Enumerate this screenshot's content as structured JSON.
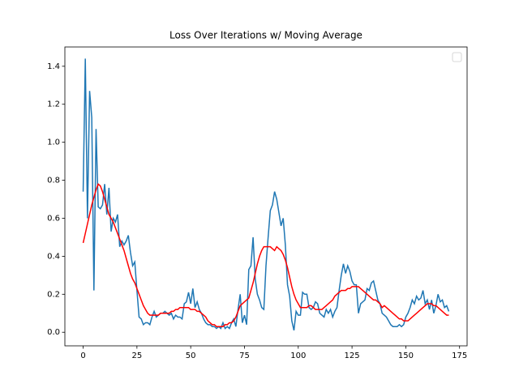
{
  "chart_data": {
    "type": "line",
    "title": "Loss Over Iterations w/ Moving Average",
    "series": [
      {
        "color": "#1f77b4",
        "values": [
          0.74,
          1.44,
          0.6,
          1.27,
          1.13,
          0.22,
          1.07,
          0.66,
          0.65,
          0.67,
          0.78,
          0.62,
          0.76,
          0.53,
          0.6,
          0.58,
          0.62,
          0.45,
          0.48,
          0.46,
          0.48,
          0.51,
          0.42,
          0.35,
          0.37,
          0.22,
          0.08,
          0.07,
          0.04,
          0.05,
          0.05,
          0.04,
          0.08,
          0.11,
          0.08,
          0.09,
          0.1,
          0.1,
          0.11,
          0.1,
          0.09,
          0.1,
          0.07,
          0.09,
          0.08,
          0.08,
          0.07,
          0.15,
          0.16,
          0.21,
          0.15,
          0.23,
          0.13,
          0.16,
          0.12,
          0.1,
          0.07,
          0.05,
          0.04,
          0.04,
          0.03,
          0.03,
          0.02,
          0.03,
          0.02,
          0.05,
          0.02,
          0.03,
          0.02,
          0.05,
          0.07,
          0.03,
          0.12,
          0.2,
          0.05,
          0.09,
          0.04,
          0.33,
          0.35,
          0.5,
          0.28,
          0.2,
          0.17,
          0.13,
          0.12,
          0.35,
          0.5,
          0.64,
          0.67,
          0.74,
          0.7,
          0.63,
          0.56,
          0.6,
          0.46,
          0.25,
          0.19,
          0.06,
          0.01,
          0.11,
          0.09,
          0.09,
          0.21,
          0.2,
          0.2,
          0.13,
          0.12,
          0.13,
          0.16,
          0.15,
          0.1,
          0.09,
          0.08,
          0.12,
          0.1,
          0.12,
          0.08,
          0.11,
          0.13,
          0.22,
          0.3,
          0.36,
          0.31,
          0.35,
          0.32,
          0.27,
          0.25,
          0.25,
          0.1,
          0.15,
          0.16,
          0.17,
          0.23,
          0.22,
          0.26,
          0.27,
          0.22,
          0.17,
          0.15,
          0.1,
          0.09,
          0.08,
          0.06,
          0.04,
          0.03,
          0.03,
          0.03,
          0.04,
          0.03,
          0.04,
          0.08,
          0.1,
          0.13,
          0.17,
          0.15,
          0.19,
          0.17,
          0.18,
          0.22,
          0.15,
          0.17,
          0.12,
          0.17,
          0.1,
          0.14,
          0.2,
          0.16,
          0.17,
          0.13,
          0.14,
          0.11
        ]
      },
      {
        "color": "#ff0000",
        "values": [
          0.47,
          0.52,
          0.57,
          0.62,
          0.67,
          0.71,
          0.75,
          0.78,
          0.77,
          0.74,
          0.7,
          0.66,
          0.62,
          0.6,
          0.58,
          0.55,
          0.52,
          0.49,
          0.46,
          0.43,
          0.39,
          0.35,
          0.31,
          0.28,
          0.26,
          0.23,
          0.2,
          0.17,
          0.14,
          0.12,
          0.1,
          0.09,
          0.09,
          0.09,
          0.09,
          0.09,
          0.1,
          0.1,
          0.1,
          0.1,
          0.1,
          0.11,
          0.11,
          0.12,
          0.12,
          0.13,
          0.13,
          0.13,
          0.13,
          0.13,
          0.12,
          0.12,
          0.12,
          0.11,
          0.11,
          0.1,
          0.09,
          0.08,
          0.06,
          0.05,
          0.04,
          0.04,
          0.03,
          0.03,
          0.03,
          0.03,
          0.04,
          0.04,
          0.05,
          0.05,
          0.06,
          0.08,
          0.11,
          0.14,
          0.15,
          0.16,
          0.17,
          0.18,
          0.22,
          0.26,
          0.31,
          0.36,
          0.4,
          0.43,
          0.45,
          0.45,
          0.45,
          0.45,
          0.44,
          0.43,
          0.45,
          0.44,
          0.43,
          0.41,
          0.38,
          0.34,
          0.29,
          0.24,
          0.2,
          0.17,
          0.15,
          0.13,
          0.13,
          0.13,
          0.13,
          0.14,
          0.14,
          0.13,
          0.12,
          0.12,
          0.12,
          0.12,
          0.13,
          0.14,
          0.15,
          0.16,
          0.17,
          0.19,
          0.2,
          0.21,
          0.22,
          0.22,
          0.22,
          0.23,
          0.23,
          0.24,
          0.24,
          0.24,
          0.24,
          0.23,
          0.22,
          0.21,
          0.2,
          0.19,
          0.18,
          0.17,
          0.17,
          0.16,
          0.15,
          0.13,
          0.14,
          0.13,
          0.12,
          0.11,
          0.1,
          0.09,
          0.08,
          0.07,
          0.07,
          0.06,
          0.06,
          0.06,
          0.07,
          0.08,
          0.09,
          0.1,
          0.11,
          0.12,
          0.13,
          0.14,
          0.15,
          0.15,
          0.15,
          0.14,
          0.14,
          0.13,
          0.12,
          0.11,
          0.1,
          0.09,
          0.09
        ]
      }
    ],
    "xlim": [
      -8.5,
      178.5
    ],
    "xticks": [
      0,
      25,
      50,
      75,
      100,
      125,
      150,
      175
    ],
    "ylim": [
      -0.0715,
      1.5015
    ],
    "yticks": [
      {
        "value": 0,
        "label": "0.0"
      },
      0.2,
      0.4,
      0.6,
      0.8,
      {
        "value": 1,
        "label": "1.0"
      },
      1.2,
      1.4
    ],
    "legend": "upper right"
  }
}
